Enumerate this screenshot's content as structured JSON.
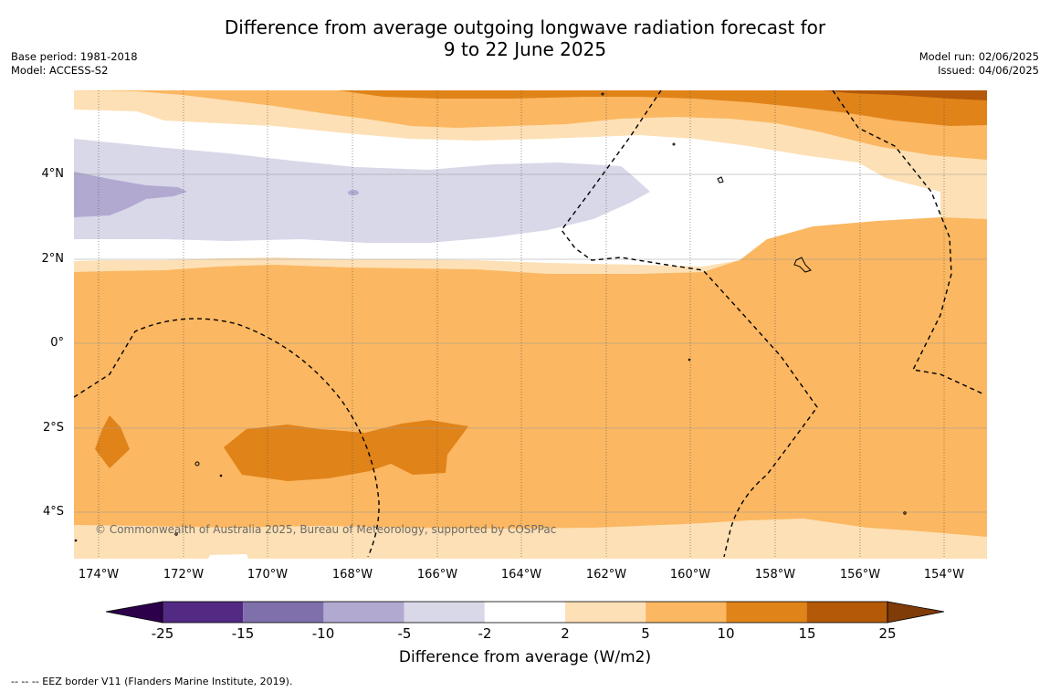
{
  "title": {
    "line1": "Difference from average outgoing longwave radiation forecast for",
    "line2": "9 to 22 June 2025"
  },
  "meta_left": {
    "base_period": "Base period: 1981-2018",
    "model": "Model: ACCESS-S2"
  },
  "meta_right": {
    "model_run": "Model run: 02/06/2025",
    "issued": "Issued: 04/06/2025"
  },
  "map": {
    "lat_labels": [
      "4°N",
      "2°N",
      "0°",
      "2°S",
      "4°S"
    ],
    "lon_labels": [
      "174°W",
      "172°W",
      "170°W",
      "168°W",
      "166°W",
      "164°W",
      "162°W",
      "160°W",
      "158°W",
      "156°W",
      "154°W"
    ],
    "copyright": "© Commonwealth of Australia 2025, Bureau of Meteorology, supported by COSPPac"
  },
  "colorbar": {
    "title": "Difference from average (W/m2)",
    "labels": [
      "-25",
      "-15",
      "-10",
      "-5",
      "-2",
      "2",
      "5",
      "10",
      "15",
      "25"
    ],
    "colors": [
      "#522a84",
      "#7f70ab",
      "#b2a9d1",
      "#d8d8e9",
      "#ffffff",
      "#fde0b5",
      "#fbb761",
      "#e08319",
      "#b45908"
    ],
    "extend_low_color": "#2d004b",
    "extend_high_color": "#7f3b08"
  },
  "footer": "--  --  -- EEZ border V11 (Flanders Marine Institute, 2019)."
}
